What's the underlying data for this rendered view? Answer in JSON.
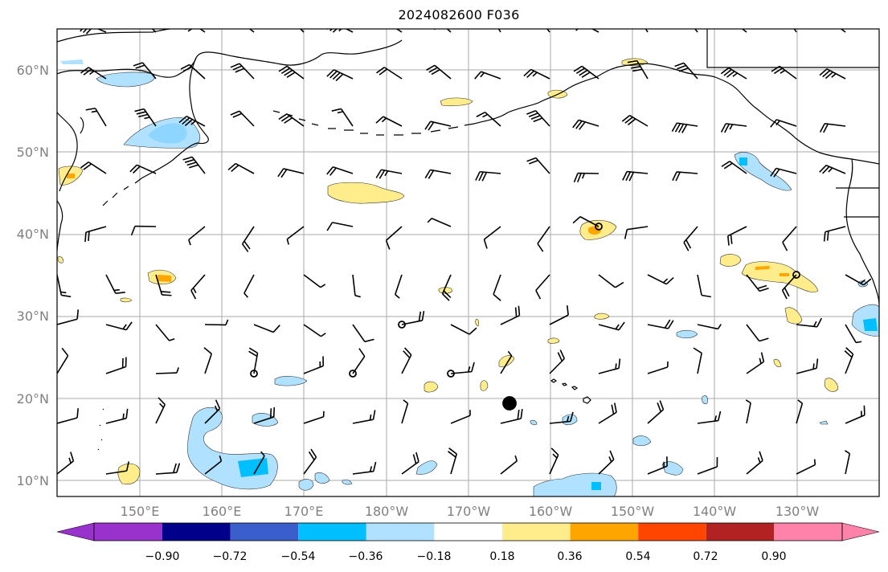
{
  "title": "2024082600 F036",
  "map": {
    "projection": "PlateCarree",
    "lon_range": [
      140,
      250
    ],
    "lat_range": [
      8,
      65
    ],
    "lat_labels": [
      "10°N",
      "20°N",
      "30°N",
      "40°N",
      "50°N",
      "60°N"
    ],
    "lon_labels": [
      "150°E",
      "160°E",
      "170°E",
      "180°W",
      "170°W",
      "160°W",
      "150°W",
      "140°W",
      "130°W"
    ],
    "grid": true,
    "features": [
      "coastlines",
      "wind barbs",
      "filled contours",
      "storm markers"
    ]
  },
  "colorbar": {
    "ticks": [
      "−0.90",
      "−0.72",
      "−0.54",
      "−0.36",
      "−0.18",
      "0.18",
      "0.36",
      "0.54",
      "0.72",
      "0.90"
    ],
    "colors": [
      "#9932cc",
      "#00008b",
      "#3a5fcd",
      "#00bfff",
      "#b0e2ff",
      "#ffffff",
      "#ffec8b",
      "#ffa500",
      "#ff4500",
      "#b22222",
      "#ff82ab"
    ],
    "extend": "both"
  },
  "markers": {
    "open_circles": 7,
    "filled_circles": 1
  }
}
